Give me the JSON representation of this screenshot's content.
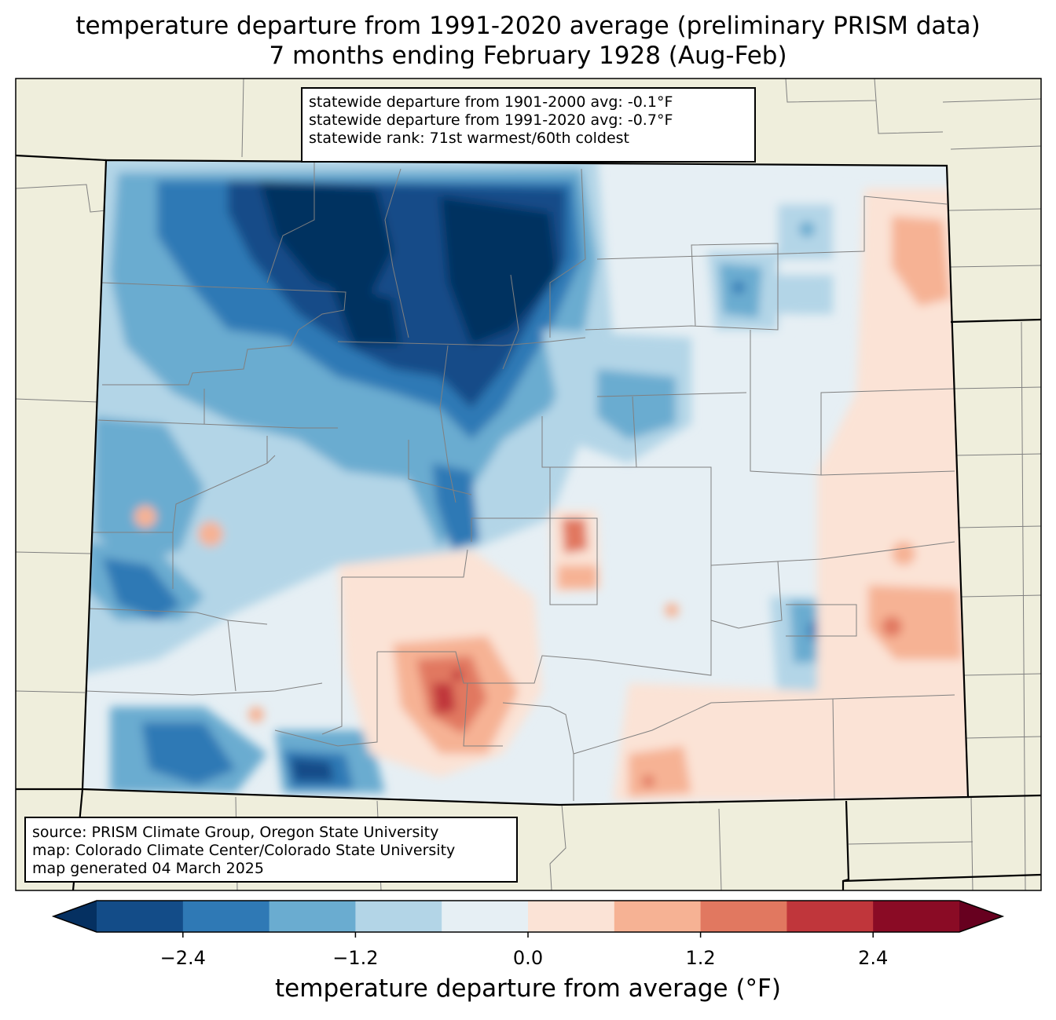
{
  "title": {
    "line1": "temperature departure from 1991-2020 average (preliminary PRISM data)",
    "line2": "7 months ending February 1928 (Aug-Feb)"
  },
  "stats": {
    "line1": "statewide departure from 1901-2000 avg: -0.1°F",
    "line2": "statewide departure from 1991-2020 avg: -0.7°F",
    "line3": "statewide rank: 71st warmest/60th coldest"
  },
  "credits": {
    "line1": "source: PRISM Climate Group, Oregon State University",
    "line2": "map: Colorado Climate Center/Colorado State University",
    "line3": "map generated 04 March 2025"
  },
  "colorbar": {
    "label": "temperature departure from average (°F)",
    "ticks": [
      "−2.4",
      "−1.2",
      "0.0",
      "1.2",
      "2.4"
    ],
    "tick_values": [
      -2.4,
      -1.2,
      0.0,
      1.2,
      2.4
    ],
    "bin_edges": [
      -3.0,
      -2.4,
      -1.8,
      -1.2,
      -0.6,
      0.0,
      0.6,
      1.2,
      1.8,
      2.4,
      3.0
    ],
    "colors": [
      "#053061",
      "#134c88",
      "#2f79b5",
      "#6aacd0",
      "#b3d5e7",
      "#e6eff4",
      "#fbe3d6",
      "#f6b294",
      "#e17860",
      "#c0363b",
      "#8a0b25",
      "#67001f"
    ]
  },
  "map": {
    "background_color": "#efeedc",
    "state_outline_color": "#000000",
    "county_line_color": "#808080"
  }
}
